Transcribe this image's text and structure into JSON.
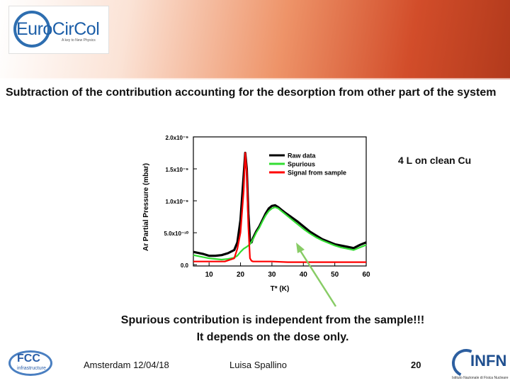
{
  "header": {
    "logo_text": "EuroCirCol",
    "logo_tagline": "A key to New Physics"
  },
  "slide": {
    "subtitle": "Subtraction of the contribution accounting for the desorption from other part of the system",
    "note": "4 L on clean Cu",
    "conclusion_line1": "Spurious contribution is independent from the sample!!!",
    "conclusion_line2": "It depends on the dose only."
  },
  "footer": {
    "date": "Amsterdam 12/04/18",
    "author": "Luisa Spallino",
    "page": "20",
    "fcc_logo_text": "FCC",
    "fcc_logo_sub": "infrastructure",
    "infn_logo_text": "INFN",
    "infn_logo_sub": "Istituto Nazionale di Fisica Nucleare"
  },
  "colors": {
    "raw": "#000000",
    "spurious": "#33dd33",
    "signal": "#ff0000",
    "arrow": "#88cc66",
    "banner_accent": "#d24d2a"
  },
  "chart_data": {
    "type": "line",
    "xlabel": "T* (K)",
    "ylabel": "Ar Partial Pressure (mbar)",
    "xlim": [
      5,
      60
    ],
    "ylim": [
      -2e-11,
      2e-09
    ],
    "xticks": [
      10,
      20,
      30,
      40,
      50,
      60
    ],
    "xtick_labels": [
      "10",
      "20",
      "30",
      "40",
      "50",
      "60"
    ],
    "yticks": [
      0,
      5e-10,
      1e-09,
      1.5e-09,
      2e-09
    ],
    "ytick_labels": [
      "0.0",
      "5.0x10⁻¹⁰",
      "1.0x10⁻⁹",
      "1.5x10⁻⁹",
      "2.0x10⁻⁹"
    ],
    "legend_position": "top-right",
    "series": [
      {
        "name": "Raw data",
        "x": [
          5,
          8,
          10,
          12,
          14,
          16,
          18,
          19,
          20,
          21,
          21.5,
          22,
          22.5,
          23,
          23.5,
          24,
          25,
          26,
          27,
          28,
          29,
          30,
          31,
          32,
          33,
          34,
          36,
          38,
          40,
          42,
          44,
          46,
          48,
          50,
          52,
          54,
          56,
          58,
          60
        ],
        "values": [
          2e-10,
          1.7e-10,
          1.4e-10,
          1.4e-10,
          1.5e-10,
          1.8e-10,
          2.3e-10,
          3.5e-10,
          7e-10,
          1.4e-09,
          1.75e-09,
          1.5e-09,
          8e-10,
          3.8e-10,
          3.5e-10,
          4.2e-10,
          5.2e-10,
          6e-10,
          7e-10,
          8e-10,
          8.8e-10,
          9.2e-10,
          9.3e-10,
          9e-10,
          8.6e-10,
          8.2e-10,
          7.5e-10,
          6.8e-10,
          6e-10,
          5.2e-10,
          4.6e-10,
          4e-10,
          3.6e-10,
          3.2e-10,
          3e-10,
          2.8e-10,
          2.6e-10,
          3.1e-10,
          3.5e-10
        ]
      },
      {
        "name": "Spurious",
        "x": [
          5,
          8,
          10,
          12,
          14,
          16,
          18,
          19,
          20,
          21,
          22,
          23,
          24,
          25,
          26,
          27,
          28,
          29,
          30,
          31,
          32,
          33,
          34,
          36,
          38,
          40,
          42,
          44,
          46,
          48,
          50,
          52,
          54,
          56,
          58,
          60
        ],
        "values": [
          1.5e-10,
          1.2e-10,
          1e-10,
          9e-11,
          8e-11,
          9e-11,
          1.1e-10,
          1.4e-10,
          2e-10,
          2.5e-10,
          2.8e-10,
          3.2e-10,
          4e-10,
          5e-10,
          5.8e-10,
          6.8e-10,
          7.7e-10,
          8.4e-10,
          8.8e-10,
          9e-10,
          8.8e-10,
          8.4e-10,
          8e-10,
          7.2e-10,
          6.4e-10,
          5.6e-10,
          4.9e-10,
          4.3e-10,
          3.8e-10,
          3.4e-10,
          3e-10,
          2.7e-10,
          2.5e-10,
          2.3e-10,
          2.7e-10,
          3.1e-10
        ]
      },
      {
        "name": "Signal from sample",
        "x": [
          5,
          10,
          15,
          18,
          19,
          20,
          21,
          21.5,
          22,
          22.5,
          23,
          23.5,
          24,
          25,
          30,
          35,
          40,
          45,
          50,
          55,
          60
        ],
        "values": [
          5e-11,
          5e-11,
          5e-11,
          1e-10,
          2.5e-10,
          5e-10,
          1.15e-09,
          1.75e-09,
          1.45e-09,
          6e-10,
          1e-10,
          6e-11,
          5e-11,
          5e-11,
          5e-11,
          4e-11,
          4e-11,
          4e-11,
          4e-11,
          4e-11,
          4e-11
        ]
      }
    ]
  }
}
